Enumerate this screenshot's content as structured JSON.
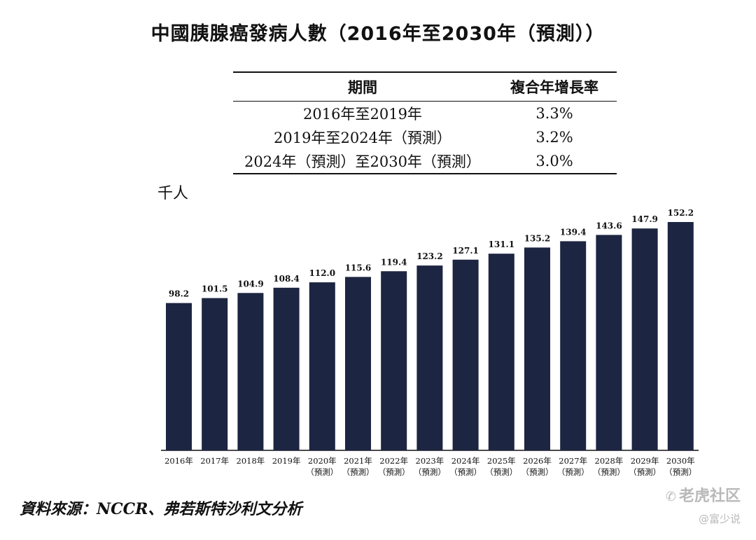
{
  "title": "中國胰腺癌發病人數（2016年至2030年（預測））",
  "cagr_table": {
    "header": {
      "period": "期間",
      "rate": "複合年增長率"
    },
    "rows": [
      {
        "period": "2016年至2019年",
        "rate": "3.3%"
      },
      {
        "period": "2019年至2024年（預測）",
        "rate": "3.2%"
      },
      {
        "period": "2024年（預測）至2030年（預測）",
        "rate": "3.0%"
      }
    ]
  },
  "unit_label": "千人",
  "source": "資料來源：NCCR、弗若斯特沙利文分析",
  "watermark": {
    "line1": "老虎社区",
    "line2": "@富少说",
    "icon": "wechat-icon"
  },
  "colors": {
    "bar": "#1c2541",
    "text": "#111111",
    "axis": "#111111"
  },
  "chart_data": {
    "type": "bar",
    "title": "中國胰腺癌發病人數（2016年至2030年（預測））",
    "ylabel": "千人",
    "xlabel": "",
    "ylim": [
      0,
      160
    ],
    "grid": false,
    "categories": [
      "2016年",
      "2017年",
      "2018年",
      "2019年",
      "2020年",
      "2021年",
      "2022年",
      "2023年",
      "2024年",
      "2025年",
      "2026年",
      "2027年",
      "2028年",
      "2029年",
      "2030年"
    ],
    "category_notes": [
      "",
      "",
      "",
      "",
      "（預測）",
      "（預測）",
      "（預測）",
      "（預測）",
      "（預測）",
      "（預測）",
      "（預測）",
      "（預測）",
      "（預測）",
      "（預測）",
      "（預測）"
    ],
    "values": [
      98.2,
      101.5,
      104.9,
      108.4,
      112.0,
      115.6,
      119.4,
      123.2,
      127.1,
      131.1,
      135.2,
      139.4,
      143.6,
      147.9,
      152.2
    ],
    "value_labels": [
      "98.2",
      "101.5",
      "104.9",
      "108.4",
      "112.0",
      "115.6",
      "119.4",
      "123.2",
      "127.1",
      "131.1",
      "135.2",
      "139.4",
      "143.6",
      "147.9",
      "152.2"
    ]
  }
}
